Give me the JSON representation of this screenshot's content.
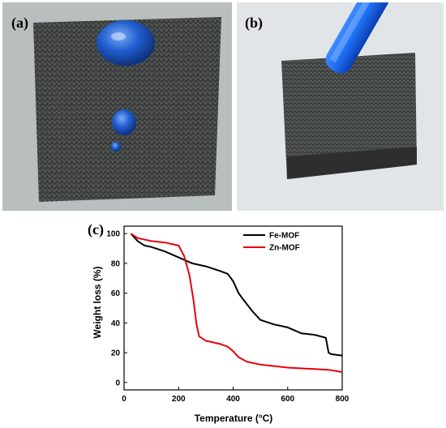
{
  "panels": {
    "a": {
      "label": "(a)"
    },
    "b": {
      "label": "(b)"
    },
    "c": {
      "label": "(c)"
    }
  },
  "colors": {
    "felt": "#3a3d3c",
    "felt_light": "#5b605e",
    "droplet": "#1f5fd6",
    "background_a": "#b9bfbe",
    "background_b": "#e2e5e7",
    "tube": "#1e6ef2",
    "fe_mof": "#000000",
    "zn_mof": "#e8000b"
  },
  "chart_data": {
    "type": "line",
    "title": "",
    "xlabel": "Temperature (°C)",
    "ylabel": "Weight loss (%)",
    "xlim": [
      0,
      800
    ],
    "ylim": [
      -5,
      105
    ],
    "xticks": [
      0,
      200,
      400,
      600,
      800
    ],
    "yticks": [
      0,
      20,
      40,
      60,
      80,
      100
    ],
    "grid": false,
    "legend_position": "top-right",
    "series": [
      {
        "name": "Fe-MOF",
        "color": "#000000",
        "x": [
          25,
          50,
          75,
          100,
          150,
          200,
          250,
          300,
          350,
          380,
          400,
          420,
          440,
          470,
          500,
          550,
          600,
          650,
          700,
          740,
          750,
          760,
          800
        ],
        "y": [
          100,
          95,
          92,
          91,
          88,
          84,
          80,
          78,
          75,
          73,
          68,
          60,
          55,
          48,
          42,
          39,
          37,
          33,
          32,
          30,
          20,
          19,
          18
        ]
      },
      {
        "name": "Zn-MOF",
        "color": "#e8000b",
        "x": [
          25,
          50,
          100,
          150,
          200,
          220,
          240,
          255,
          265,
          275,
          300,
          350,
          380,
          400,
          420,
          450,
          500,
          600,
          700,
          750,
          800
        ],
        "y": [
          100,
          97,
          95,
          94,
          92,
          85,
          72,
          55,
          40,
          31,
          28,
          26,
          24,
          21,
          17,
          14,
          12,
          10,
          9,
          8.5,
          7
        ]
      }
    ]
  }
}
